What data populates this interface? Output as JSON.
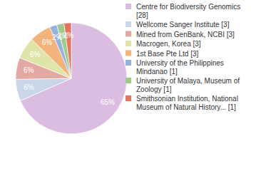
{
  "chart_data": {
    "type": "pie",
    "categories": [
      "Centre for Biodiversity Genomics [28]",
      "Wellcome Sanger Institute [3]",
      "Mined from GenBank, NCBI [3]",
      "Macrogen, Korea [3]",
      "1st Base Pte Ltd [3]",
      "University of the Philippines Mindanao [1]",
      "University of Malaya, Museum of Zoology [1]",
      "Smithsonian Institution, National Museum of Natural History... [1]"
    ],
    "values": [
      65,
      6,
      6,
      6,
      6,
      2,
      2,
      2
    ],
    "value_labels": [
      "65%",
      "6%",
      "6%",
      "6%",
      "6%",
      "2%",
      "2%",
      "2%"
    ],
    "colors": [
      "#dcbde2",
      "#c9d5e9",
      "#e2a9a2",
      "#dfe5a9",
      "#f2b37c",
      "#93b3dc",
      "#a0ca8d",
      "#e27560"
    ],
    "data_labels": true,
    "legend": "right"
  }
}
